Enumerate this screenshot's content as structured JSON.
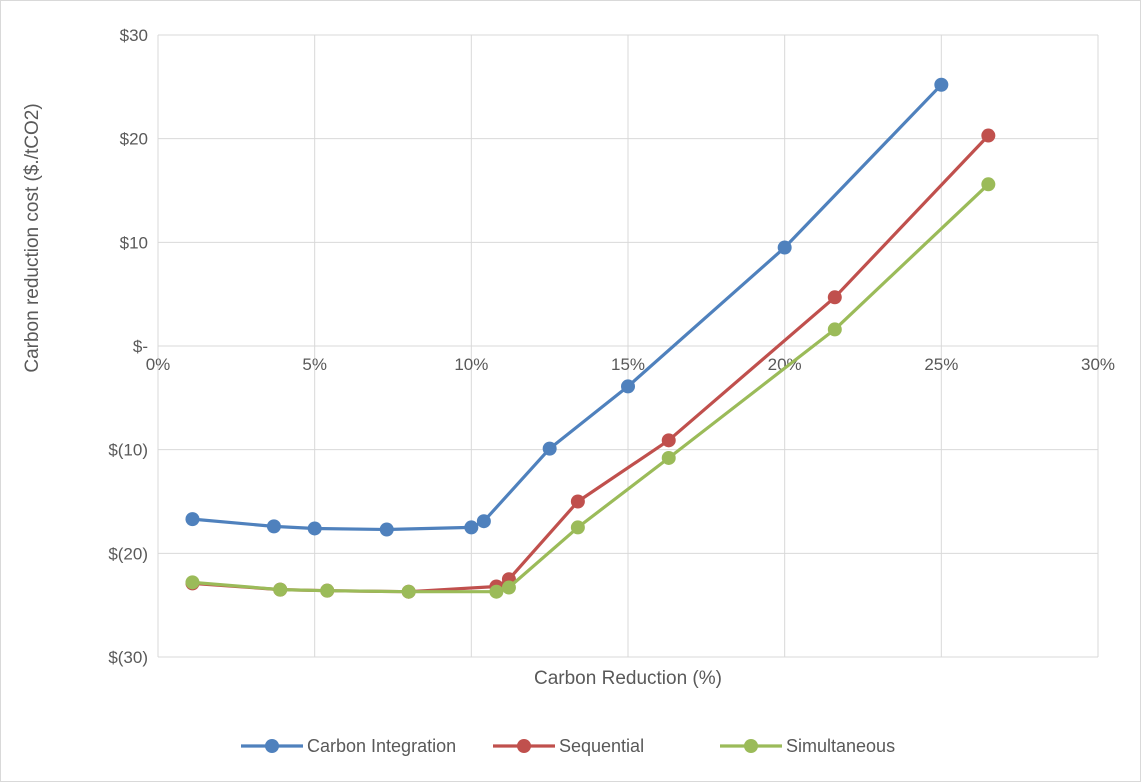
{
  "chart_data": {
    "type": "line",
    "title": "",
    "xlabel": "Carbon Reduction (%)",
    "ylabel": "Carbon reduction cost ($./tCO2)",
    "xlim": [
      0,
      30
    ],
    "ylim": [
      -30,
      30
    ],
    "x_ticks": [
      {
        "value": 0,
        "label": "0%"
      },
      {
        "value": 5,
        "label": "5%"
      },
      {
        "value": 10,
        "label": "10%"
      },
      {
        "value": 15,
        "label": "15%"
      },
      {
        "value": 20,
        "label": "20%"
      },
      {
        "value": 25,
        "label": "25%"
      },
      {
        "value": 30,
        "label": "30%"
      }
    ],
    "y_ticks": [
      {
        "value": 30,
        "label": "$30"
      },
      {
        "value": 20,
        "label": "$20"
      },
      {
        "value": 10,
        "label": "$10"
      },
      {
        "value": 0,
        "label": "$-"
      },
      {
        "value": -10,
        "label": "$(10)"
      },
      {
        "value": -20,
        "label": "$(20)"
      },
      {
        "value": -30,
        "label": "$(30)"
      }
    ],
    "grid": true,
    "legend_position": "bottom",
    "series": [
      {
        "name": "Carbon Integration",
        "color": "#4F81BD",
        "points": [
          [
            1.1,
            -16.7
          ],
          [
            3.7,
            -17.4
          ],
          [
            5.0,
            -17.6
          ],
          [
            7.3,
            -17.7
          ],
          [
            10.0,
            -17.5
          ],
          [
            10.4,
            -16.9
          ],
          [
            12.5,
            -9.9
          ],
          [
            15.0,
            -3.9
          ],
          [
            20.0,
            9.5
          ],
          [
            25.0,
            25.2
          ]
        ]
      },
      {
        "name": "Sequential",
        "color": "#C0504D",
        "points": [
          [
            1.1,
            -22.9
          ],
          [
            3.9,
            -23.5
          ],
          [
            5.4,
            -23.6
          ],
          [
            8.0,
            -23.7
          ],
          [
            10.8,
            -23.2
          ],
          [
            11.2,
            -22.5
          ],
          [
            13.4,
            -15.0
          ],
          [
            16.3,
            -9.1
          ],
          [
            21.6,
            4.7
          ],
          [
            26.5,
            20.3
          ]
        ]
      },
      {
        "name": "Simultaneous",
        "color": "#9BBB59",
        "points": [
          [
            1.1,
            -22.8
          ],
          [
            3.9,
            -23.5
          ],
          [
            5.4,
            -23.6
          ],
          [
            8.0,
            -23.7
          ],
          [
            10.8,
            -23.7
          ],
          [
            11.2,
            -23.3
          ],
          [
            13.4,
            -17.5
          ],
          [
            16.3,
            -10.8
          ],
          [
            21.6,
            1.6
          ],
          [
            26.5,
            15.6
          ]
        ]
      }
    ]
  }
}
